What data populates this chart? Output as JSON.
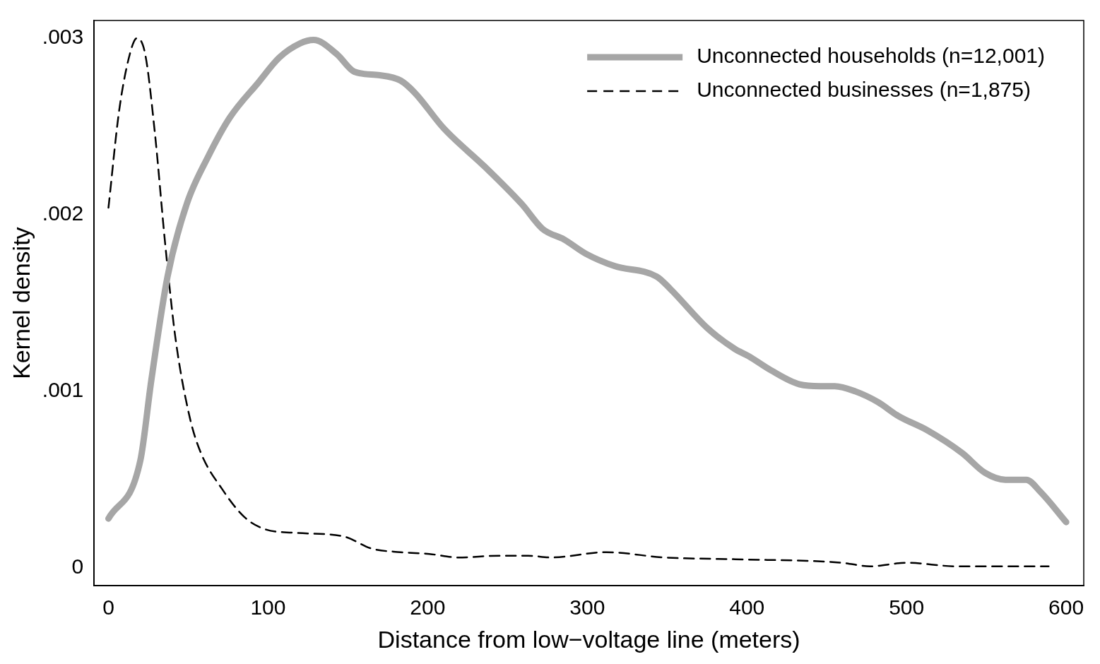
{
  "chart_data": {
    "type": "line",
    "xlabel": "Distance from low−voltage line (meters)",
    "ylabel": "Kernel density",
    "xlim": [
      -9,
      611
    ],
    "ylim": [
      -0.0001,
      0.0031
    ],
    "xticks": [
      0,
      100,
      200,
      300,
      400,
      500,
      600
    ],
    "yticks": [
      0,
      {
        "value": 0.001,
        "label": ".001"
      },
      {
        "value": 0.002,
        "label": ".002"
      },
      {
        "value": 0.003,
        "label": ".003"
      }
    ],
    "grid": false,
    "legend": "top right",
    "marker": "none",
    "series": [
      {
        "name": "Unconnected households (n=12,001)",
        "color": "#a6a6a6",
        "line_style": "solid",
        "x": [
          0,
          20,
          26.8,
          37,
          49,
          62.5,
          76,
          94,
          107,
          120,
          128.5,
          143,
          154,
          170,
          183,
          192,
          210,
          236,
          259,
          272,
          285.5,
          299,
          317,
          343.5,
          352,
          375,
          392.5,
          401,
          415,
          433,
          446,
          455,
          468,
          482,
          495,
          513,
          535,
          549,
          562,
          575,
          584,
          600
        ],
        "values": [
          0.00028,
          0.00061,
          0.00106,
          0.00165,
          0.00206,
          0.00233,
          0.00255,
          0.00275,
          0.00289,
          0.00297,
          0.00299,
          0.00291,
          0.00281,
          0.00279,
          0.00276,
          0.00269,
          0.00249,
          0.00227,
          0.00206,
          0.00192,
          0.00186,
          0.00178,
          0.00171,
          0.00165,
          0.00158,
          0.00136,
          0.00124,
          0.0012,
          0.00112,
          0.00104,
          0.00103,
          0.00103,
          0.001,
          0.00094,
          0.00086,
          0.00078,
          0.00065,
          0.00054,
          0.0005,
          0.0005,
          0.00043,
          0.00026
        ]
      },
      {
        "name": "Unconnected businesses (n=1,875)",
        "color": "#000000",
        "line_style": "dashed",
        "x": [
          0,
          6.7,
          13.4,
          17.8,
          23,
          29,
          35.7,
          42,
          51,
          58,
          71,
          85,
          98,
          116,
          147,
          165,
          183,
          201,
          219,
          245,
          263,
          277,
          312,
          348,
          392.5,
          459.5,
          477,
          500,
          531,
          589
        ],
        "values": [
          0.00204,
          0.00259,
          0.00291,
          0.003,
          0.00291,
          0.00247,
          0.00182,
          0.0013,
          0.00085,
          0.00065,
          0.00045,
          0.00029,
          0.00022,
          0.0002,
          0.00018,
          0.00011,
          9e-05,
          8e-05,
          6e-05,
          7e-05,
          7e-05,
          6e-05,
          9e-05,
          6e-05,
          5e-05,
          3e-05,
          1e-05,
          3e-05,
          1e-05,
          1e-05
        ]
      }
    ]
  }
}
